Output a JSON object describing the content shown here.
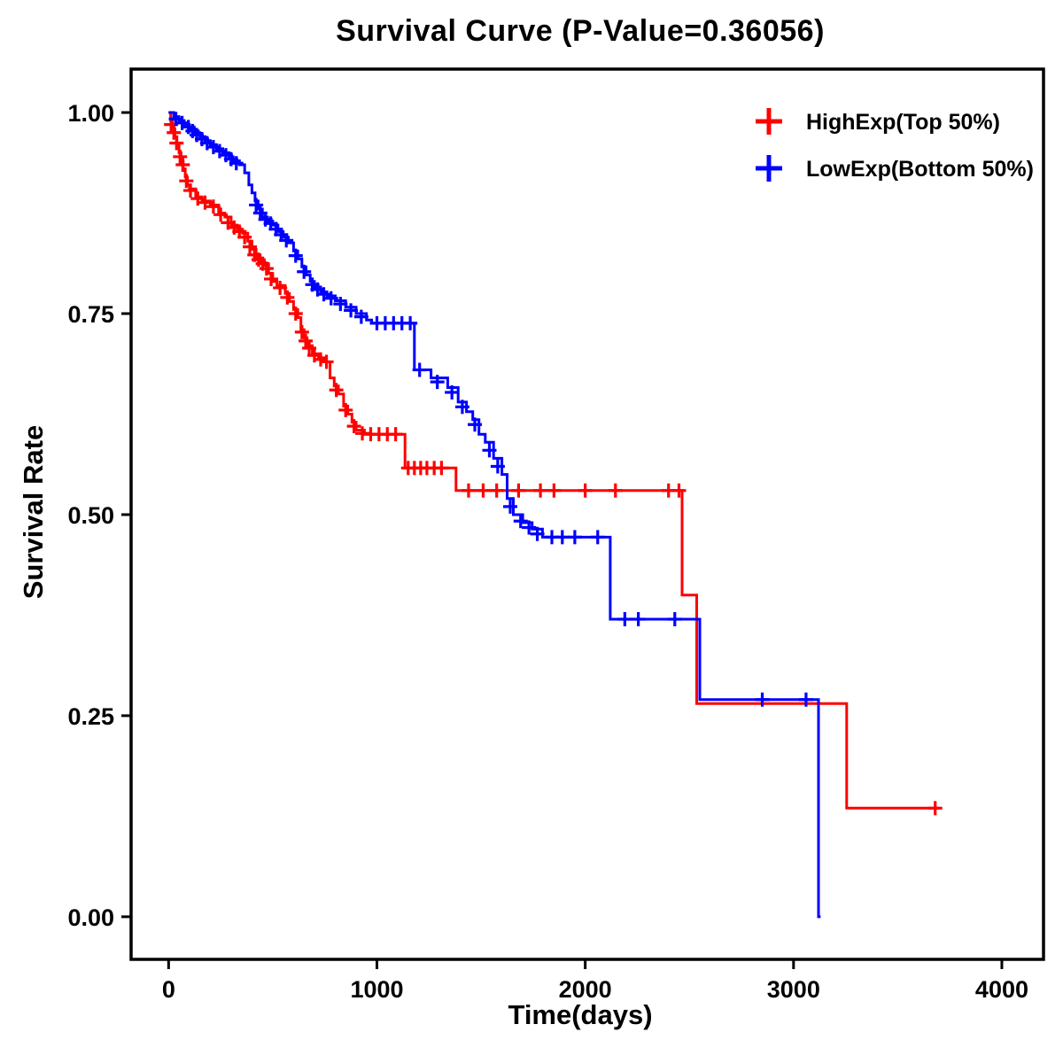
{
  "chart_data": {
    "type": "line",
    "subtype": "kaplan-meier-step",
    "title": "Survival Curve (P-Value=0.36056)",
    "xlabel": "Time(days)",
    "ylabel": "Survival Rate",
    "xlim": [
      -180,
      4200
    ],
    "ylim": [
      -0.053,
      1.054
    ],
    "xticks": [
      0,
      1000,
      2000,
      3000,
      4000
    ],
    "xtick_labels": [
      "0",
      "1000",
      "2000",
      "3000",
      "4000"
    ],
    "yticks": [
      0.0,
      0.25,
      0.5,
      0.75,
      1.0
    ],
    "ytick_labels": [
      "0.00",
      "0.25",
      "0.50",
      "0.75",
      "1.00"
    ],
    "grid": false,
    "legend_position": "top-right-inside",
    "legend": [
      {
        "label": "HighExp(Top 50%)",
        "color": "#FF0000"
      },
      {
        "label": "LowExp(Bottom 50%)",
        "color": "#0000FF"
      }
    ],
    "series": [
      {
        "name": "HighExp(Top 50%)",
        "color": "#FF0000",
        "end_x": 3700,
        "steps": [
          [
            0,
            1.0
          ],
          [
            10,
            0.99
          ],
          [
            20,
            0.98
          ],
          [
            30,
            0.97
          ],
          [
            40,
            0.96
          ],
          [
            50,
            0.95
          ],
          [
            60,
            0.94
          ],
          [
            70,
            0.93
          ],
          [
            80,
            0.92
          ],
          [
            90,
            0.91
          ],
          [
            100,
            0.905
          ],
          [
            130,
            0.895
          ],
          [
            160,
            0.89
          ],
          [
            200,
            0.885
          ],
          [
            240,
            0.875
          ],
          [
            270,
            0.87
          ],
          [
            300,
            0.86
          ],
          [
            330,
            0.855
          ],
          [
            355,
            0.85
          ],
          [
            380,
            0.84
          ],
          [
            400,
            0.83
          ],
          [
            420,
            0.82
          ],
          [
            440,
            0.815
          ],
          [
            460,
            0.81
          ],
          [
            480,
            0.8
          ],
          [
            500,
            0.79
          ],
          [
            520,
            0.785
          ],
          [
            560,
            0.775
          ],
          [
            580,
            0.765
          ],
          [
            600,
            0.755
          ],
          [
            620,
            0.745
          ],
          [
            635,
            0.73
          ],
          [
            650,
            0.72
          ],
          [
            665,
            0.71
          ],
          [
            690,
            0.7
          ],
          [
            720,
            0.695
          ],
          [
            750,
            0.69
          ],
          [
            775,
            0.67
          ],
          [
            795,
            0.66
          ],
          [
            815,
            0.65
          ],
          [
            840,
            0.635
          ],
          [
            860,
            0.625
          ],
          [
            880,
            0.615
          ],
          [
            900,
            0.605
          ],
          [
            940,
            0.6
          ],
          [
            1135,
            0.558
          ],
          [
            1380,
            0.53
          ],
          [
            2465,
            0.4
          ],
          [
            2535,
            0.265
          ],
          [
            3255,
            0.135
          ]
        ],
        "censors": [
          [
            12,
            0.985
          ],
          [
            25,
            0.975
          ],
          [
            38,
            0.962
          ],
          [
            55,
            0.945
          ],
          [
            68,
            0.935
          ],
          [
            85,
            0.915
          ],
          [
            105,
            0.903
          ],
          [
            140,
            0.893
          ],
          [
            175,
            0.888
          ],
          [
            215,
            0.883
          ],
          [
            250,
            0.873
          ],
          [
            285,
            0.863
          ],
          [
            315,
            0.857
          ],
          [
            340,
            0.852
          ],
          [
            365,
            0.845
          ],
          [
            390,
            0.833
          ],
          [
            412,
            0.823
          ],
          [
            432,
            0.817
          ],
          [
            452,
            0.812
          ],
          [
            470,
            0.806
          ],
          [
            492,
            0.793
          ],
          [
            535,
            0.782
          ],
          [
            570,
            0.77
          ],
          [
            610,
            0.75
          ],
          [
            640,
            0.727
          ],
          [
            658,
            0.716
          ],
          [
            675,
            0.707
          ],
          [
            700,
            0.698
          ],
          [
            730,
            0.693
          ],
          [
            758,
            0.69
          ],
          [
            805,
            0.655
          ],
          [
            850,
            0.63
          ],
          [
            890,
            0.61
          ],
          [
            930,
            0.601
          ],
          [
            970,
            0.6
          ],
          [
            1010,
            0.6
          ],
          [
            1050,
            0.6
          ],
          [
            1090,
            0.6
          ],
          [
            1150,
            0.558
          ],
          [
            1180,
            0.558
          ],
          [
            1210,
            0.558
          ],
          [
            1240,
            0.558
          ],
          [
            1275,
            0.558
          ],
          [
            1310,
            0.558
          ],
          [
            1440,
            0.53
          ],
          [
            1510,
            0.53
          ],
          [
            1575,
            0.53
          ],
          [
            1680,
            0.53
          ],
          [
            1785,
            0.53
          ],
          [
            1850,
            0.53
          ],
          [
            2000,
            0.53
          ],
          [
            2145,
            0.53
          ],
          [
            2400,
            0.53
          ],
          [
            2450,
            0.53
          ],
          [
            3680,
            0.135
          ]
        ]
      },
      {
        "name": "LowExp(Bottom 50%)",
        "color": "#0000FF",
        "end_x": 3130,
        "steps": [
          [
            0,
            1.0
          ],
          [
            25,
            0.995
          ],
          [
            50,
            0.99
          ],
          [
            75,
            0.985
          ],
          [
            100,
            0.98
          ],
          [
            125,
            0.975
          ],
          [
            150,
            0.97
          ],
          [
            175,
            0.965
          ],
          [
            200,
            0.96
          ],
          [
            230,
            0.955
          ],
          [
            260,
            0.95
          ],
          [
            290,
            0.945
          ],
          [
            310,
            0.94
          ],
          [
            340,
            0.935
          ],
          [
            365,
            0.925
          ],
          [
            385,
            0.91
          ],
          [
            400,
            0.9
          ],
          [
            415,
            0.89
          ],
          [
            430,
            0.88
          ],
          [
            450,
            0.87
          ],
          [
            475,
            0.865
          ],
          [
            500,
            0.86
          ],
          [
            525,
            0.852
          ],
          [
            550,
            0.845
          ],
          [
            575,
            0.838
          ],
          [
            600,
            0.828
          ],
          [
            620,
            0.818
          ],
          [
            640,
            0.808
          ],
          [
            660,
            0.798
          ],
          [
            680,
            0.79
          ],
          [
            700,
            0.783
          ],
          [
            730,
            0.777
          ],
          [
            760,
            0.772
          ],
          [
            800,
            0.766
          ],
          [
            850,
            0.758
          ],
          [
            900,
            0.75
          ],
          [
            950,
            0.742
          ],
          [
            975,
            0.738
          ],
          [
            1180,
            0.68
          ],
          [
            1260,
            0.67
          ],
          [
            1340,
            0.658
          ],
          [
            1390,
            0.64
          ],
          [
            1430,
            0.628
          ],
          [
            1460,
            0.618
          ],
          [
            1490,
            0.6
          ],
          [
            1520,
            0.59
          ],
          [
            1560,
            0.57
          ],
          [
            1600,
            0.55
          ],
          [
            1625,
            0.52
          ],
          [
            1655,
            0.5
          ],
          [
            1700,
            0.49
          ],
          [
            1745,
            0.482
          ],
          [
            1795,
            0.472
          ],
          [
            2120,
            0.37
          ],
          [
            2550,
            0.27
          ],
          [
            3120,
            0.0
          ]
        ],
        "censors": [
          [
            35,
            0.992
          ],
          [
            65,
            0.987
          ],
          [
            95,
            0.982
          ],
          [
            115,
            0.977
          ],
          [
            135,
            0.972
          ],
          [
            160,
            0.967
          ],
          [
            185,
            0.962
          ],
          [
            215,
            0.957
          ],
          [
            245,
            0.952
          ],
          [
            275,
            0.947
          ],
          [
            300,
            0.942
          ],
          [
            325,
            0.937
          ],
          [
            420,
            0.885
          ],
          [
            440,
            0.875
          ],
          [
            465,
            0.867
          ],
          [
            490,
            0.862
          ],
          [
            515,
            0.855
          ],
          [
            540,
            0.848
          ],
          [
            565,
            0.841
          ],
          [
            610,
            0.822
          ],
          [
            650,
            0.802
          ],
          [
            690,
            0.786
          ],
          [
            715,
            0.78
          ],
          [
            745,
            0.774
          ],
          [
            780,
            0.769
          ],
          [
            825,
            0.762
          ],
          [
            875,
            0.754
          ],
          [
            925,
            0.746
          ],
          [
            1000,
            0.738
          ],
          [
            1040,
            0.738
          ],
          [
            1080,
            0.738
          ],
          [
            1120,
            0.738
          ],
          [
            1160,
            0.738
          ],
          [
            1205,
            0.68
          ],
          [
            1290,
            0.665
          ],
          [
            1360,
            0.652
          ],
          [
            1410,
            0.634
          ],
          [
            1470,
            0.612
          ],
          [
            1540,
            0.58
          ],
          [
            1580,
            0.56
          ],
          [
            1640,
            0.51
          ],
          [
            1690,
            0.492
          ],
          [
            1730,
            0.484
          ],
          [
            1770,
            0.476
          ],
          [
            1840,
            0.472
          ],
          [
            1890,
            0.472
          ],
          [
            1950,
            0.472
          ],
          [
            2060,
            0.472
          ],
          [
            2190,
            0.37
          ],
          [
            2255,
            0.37
          ],
          [
            2430,
            0.37
          ],
          [
            2850,
            0.27
          ],
          [
            3060,
            0.27
          ]
        ]
      }
    ]
  }
}
